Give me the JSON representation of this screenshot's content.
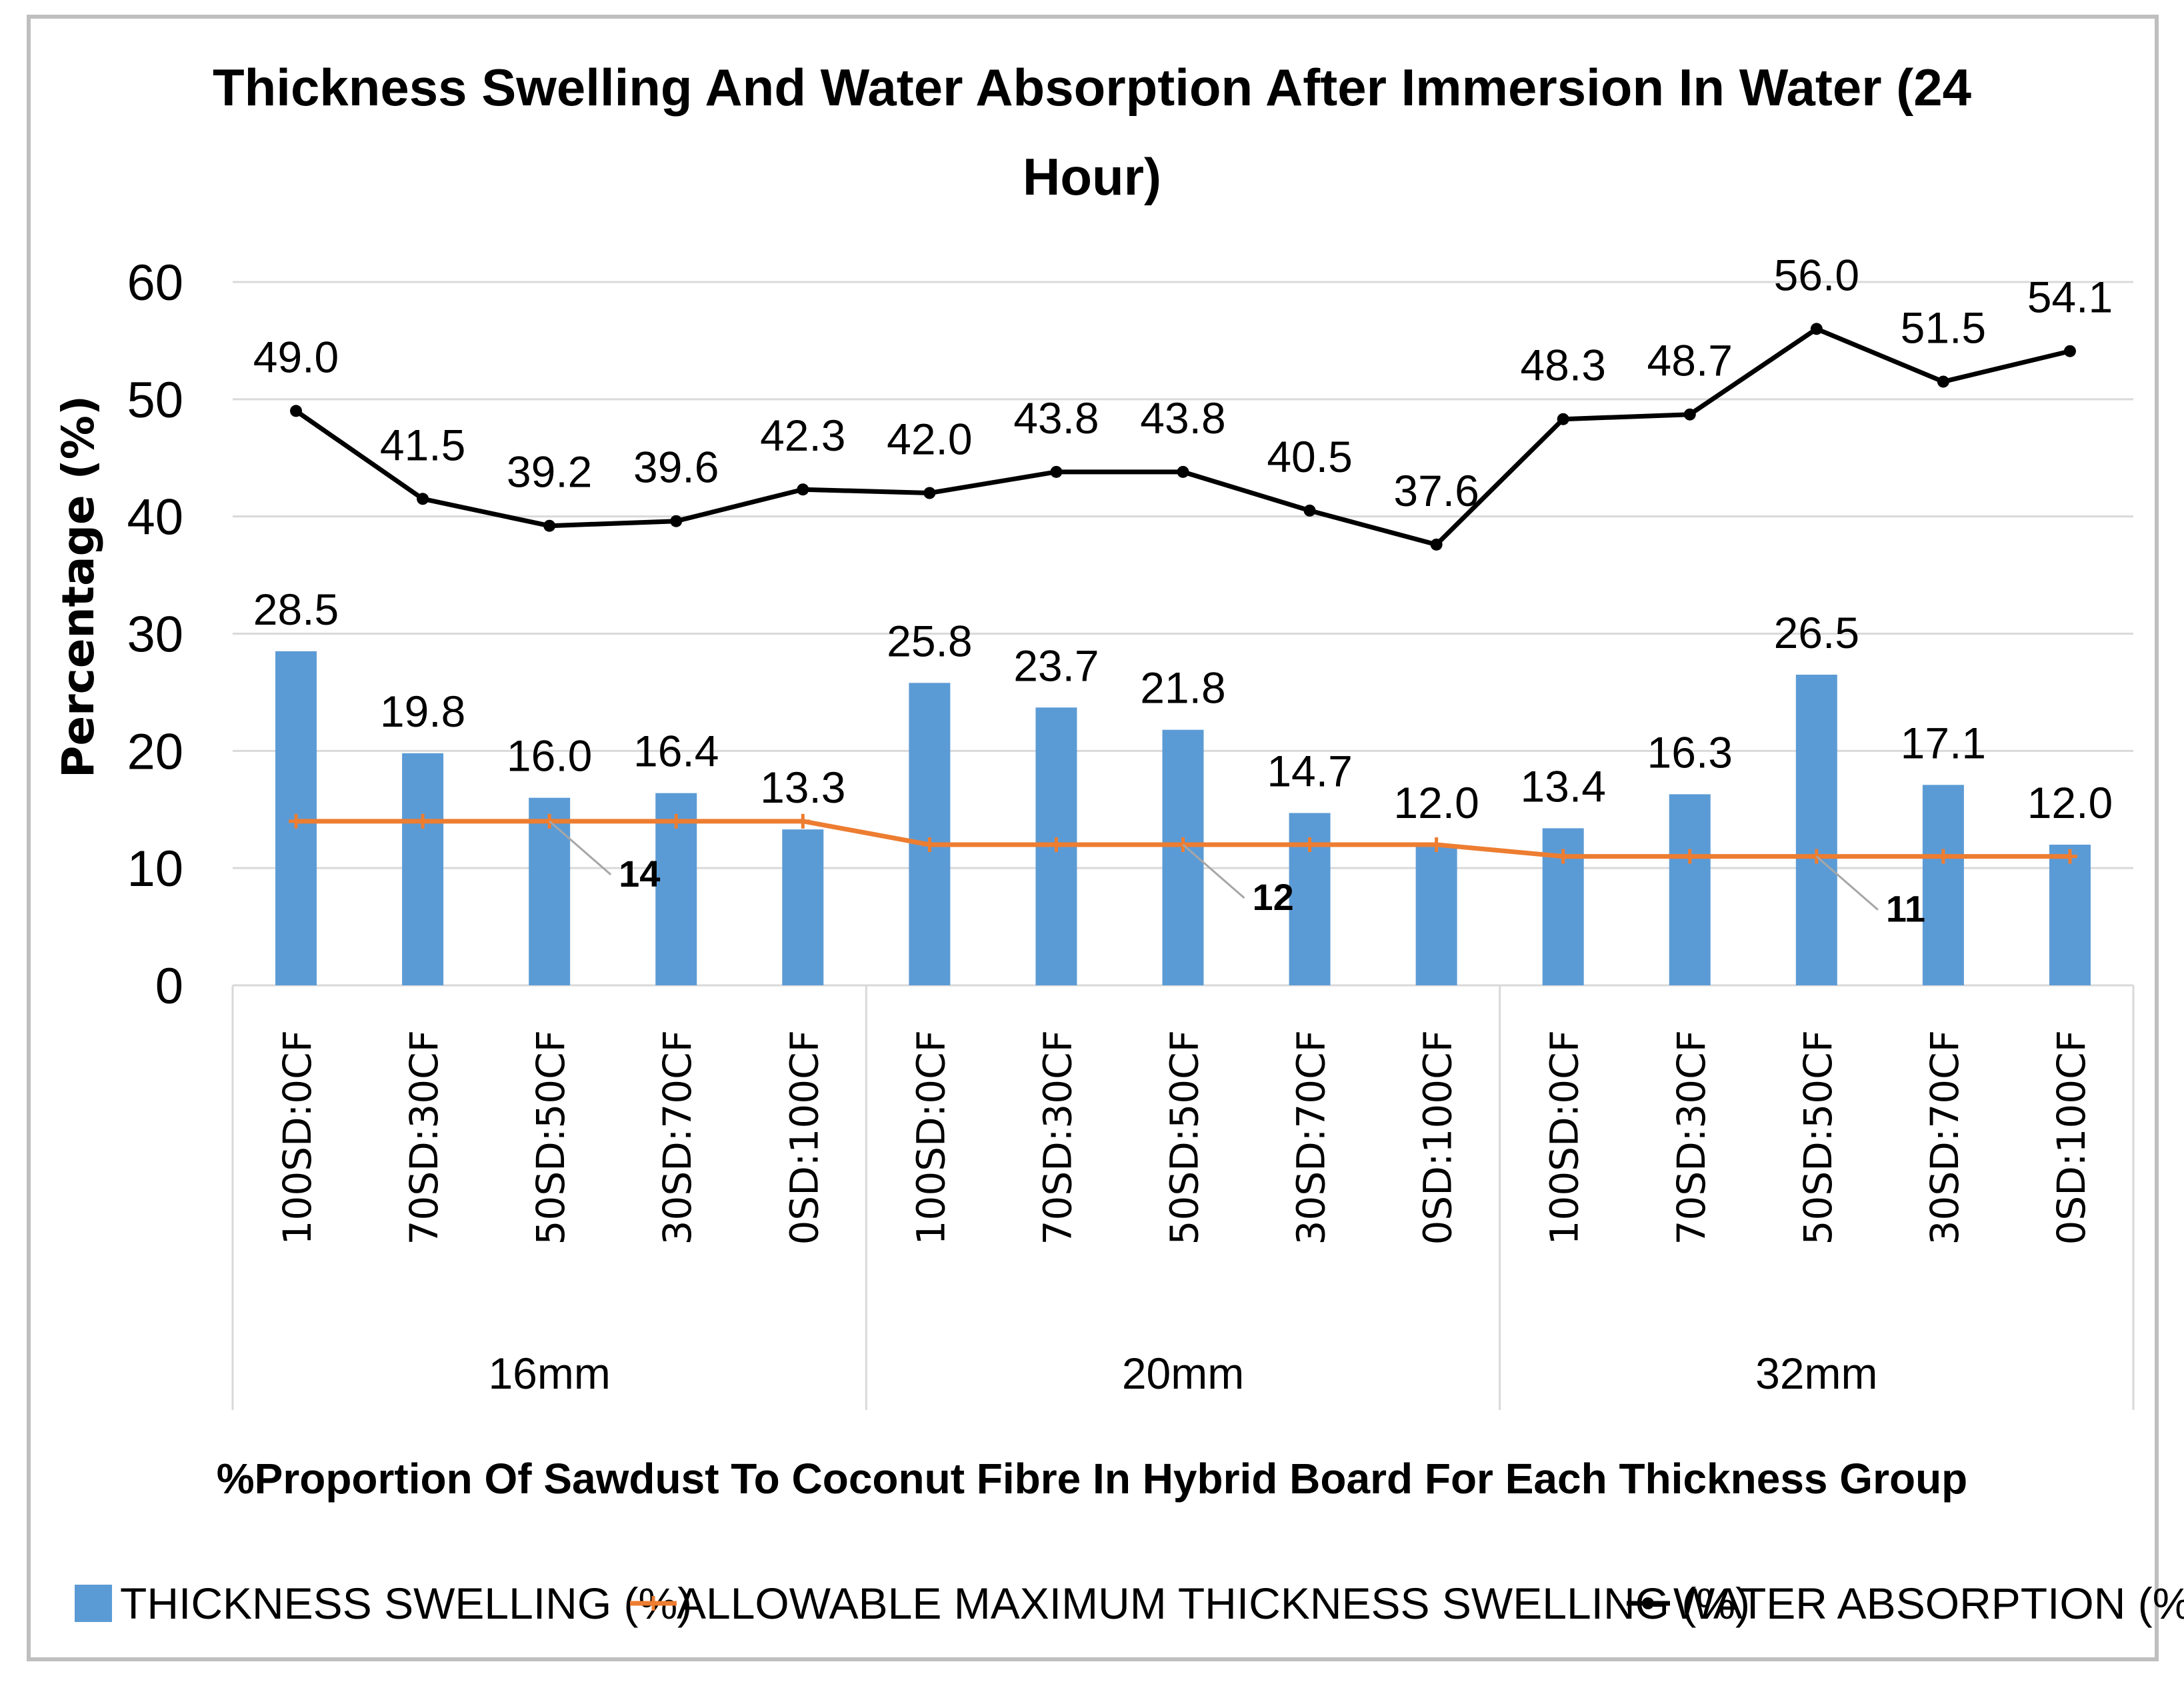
{
  "chart_data": {
    "type": "bar",
    "title_line1": "Thickness Swelling And Water Absorption After Immersion In Water (24",
    "title_line2": "Hour)",
    "xlabel": "%Proportion Of Sawdust To Coconut Fibre In Hybrid Board For Each Thickness Group",
    "ylabel": "Percentage  (%)",
    "ylim": [
      0,
      60
    ],
    "yticks": [
      "0",
      "10",
      "20",
      "30",
      "40",
      "50",
      "60"
    ],
    "grid": true,
    "legend_position": "bottom",
    "categories": [
      "100SD:0CF",
      "70SD:30CF",
      "50SD:50CF",
      "30SD:70CF",
      "0SD:100CF",
      "100SD:0CF",
      "70SD:30CF",
      "50SD:50CF",
      "30SD:70CF",
      "0SD:100CF",
      "100SD:0CF",
      "70SD:30CF",
      "50SD:50CF",
      "30SD:70CF",
      "0SD:100CF"
    ],
    "groups": [
      {
        "label": "16mm",
        "count": 5
      },
      {
        "label": "20mm",
        "count": 5
      },
      {
        "label": "32mm",
        "count": 5
      }
    ],
    "series": [
      {
        "name": "THICKNESS SWELLING (%)",
        "type": "bar",
        "color": "#5b9bd5",
        "values": [
          28.5,
          19.8,
          16.0,
          16.4,
          13.3,
          25.8,
          23.7,
          21.8,
          14.7,
          12.0,
          13.4,
          16.3,
          26.5,
          17.1,
          12.0
        ],
        "labels": [
          "28.5",
          "19.8",
          "16.0",
          "16.4",
          "13.3",
          "25.8",
          "23.7",
          "21.8",
          "14.7",
          "12.0",
          "13.4",
          "16.3",
          "26.5",
          "17.1",
          "12.0"
        ]
      },
      {
        "name": "ALLOWABLE MAXIMUM THICKNESS SWELLING (%)",
        "type": "line",
        "color": "#ed7d31",
        "values": [
          14,
          14,
          14,
          14,
          14,
          12,
          12,
          12,
          12,
          12,
          11,
          11,
          11,
          11,
          11
        ],
        "annotations": [
          {
            "index": 2,
            "text": "14"
          },
          {
            "index": 7,
            "text": "12"
          },
          {
            "index": 12,
            "text": "11"
          }
        ]
      },
      {
        "name": "WATER ABSORPTION (%)",
        "type": "line",
        "color": "#000000",
        "values": [
          49.0,
          41.5,
          39.2,
          39.6,
          42.3,
          42.0,
          43.8,
          43.8,
          40.5,
          37.6,
          48.3,
          48.7,
          56.0,
          51.5,
          54.1
        ],
        "labels": [
          "49.0",
          "41.5",
          "39.2",
          "39.6",
          "42.3",
          "42.0",
          "43.8",
          "43.8",
          "40.5",
          "37.6",
          "48.3",
          "48.7",
          "56.0",
          "51.5",
          "54.1"
        ]
      }
    ]
  },
  "colors": {
    "bar": "#5b9bd5",
    "allowable_line": "#ed7d31",
    "water_line": "#000000",
    "grid": "#d9d9d9",
    "frame": "#bfbfbf"
  }
}
